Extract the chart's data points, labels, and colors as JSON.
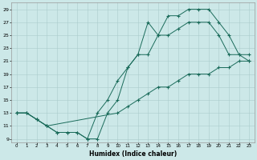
{
  "xlabel": "Humidex (Indice chaleur)",
  "bg_color": "#cce8e8",
  "grid_color": "#aacccc",
  "line_color": "#1a6b5a",
  "xlim": [
    -0.5,
    23.5
  ],
  "ylim": [
    8.5,
    30.0
  ],
  "xticks": [
    0,
    1,
    2,
    3,
    4,
    5,
    6,
    7,
    8,
    9,
    10,
    11,
    12,
    13,
    14,
    15,
    16,
    17,
    18,
    19,
    20,
    21,
    22,
    23
  ],
  "yticks": [
    9,
    11,
    13,
    15,
    17,
    19,
    21,
    23,
    25,
    27,
    29
  ],
  "curves": [
    {
      "x": [
        0,
        1,
        2,
        3,
        4,
        5,
        6,
        7,
        8,
        9,
        10,
        11,
        12,
        13,
        14,
        15,
        16,
        17,
        18,
        19,
        20,
        21,
        22,
        23
      ],
      "y": [
        13,
        13,
        12,
        11,
        10,
        10,
        10,
        9,
        13,
        15,
        18,
        20,
        22,
        22,
        25,
        25,
        26,
        27,
        27,
        27,
        25,
        22,
        22,
        21
      ]
    },
    {
      "x": [
        0,
        1,
        2,
        3,
        4,
        5,
        6,
        7,
        8,
        9,
        10,
        11,
        12,
        13,
        14,
        15,
        16,
        17,
        18,
        19,
        20,
        21,
        22,
        23
      ],
      "y": [
        13,
        13,
        12,
        11,
        10,
        10,
        10,
        9,
        9,
        13,
        15,
        20,
        22,
        27,
        25,
        28,
        28,
        29,
        29,
        29,
        27,
        25,
        22,
        22
      ]
    },
    {
      "x": [
        0,
        1,
        2,
        3,
        10,
        11,
        12,
        13,
        14,
        15,
        16,
        17,
        18,
        19,
        20,
        21,
        22,
        23
      ],
      "y": [
        13,
        13,
        12,
        11,
        13,
        14,
        15,
        16,
        17,
        17,
        18,
        19,
        19,
        19,
        20,
        20,
        21,
        21
      ]
    }
  ]
}
